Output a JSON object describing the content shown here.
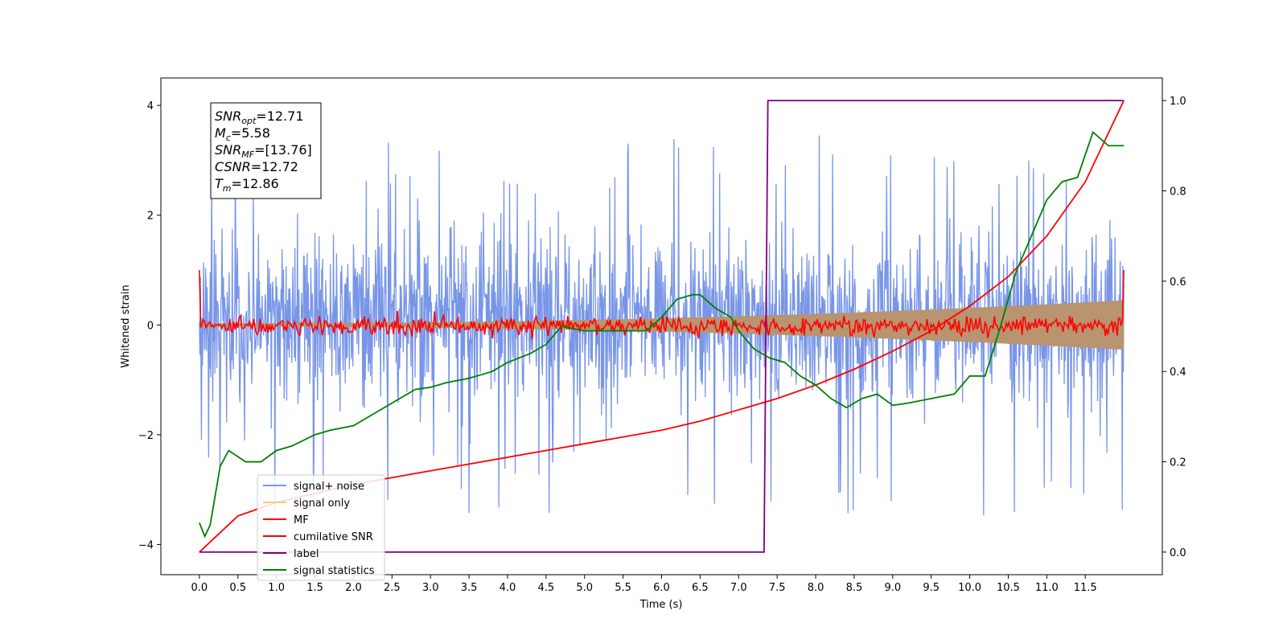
{
  "chart_data": {
    "type": "line",
    "title": "",
    "xlabel": "Time (s)",
    "ylabel": "Whitened strain",
    "y2label": "",
    "xlim": [
      -0.5,
      12.5
    ],
    "ylim": [
      -4.55,
      4.5
    ],
    "y2lim": [
      -0.05,
      1.05
    ],
    "x_ticks": [
      0.0,
      0.5,
      1.0,
      1.5,
      2.0,
      2.5,
      3.0,
      3.5,
      4.0,
      4.5,
      5.0,
      5.5,
      6.0,
      6.5,
      7.0,
      7.5,
      8.0,
      8.5,
      9.0,
      9.5,
      10.0,
      10.5,
      11.0,
      11.5
    ],
    "x_tick_labels": [
      "0.0",
      "0.5",
      "1.0",
      "1.5",
      "2.0",
      "2.5",
      "3.0",
      "3.5",
      "4.0",
      "4.5",
      "5.0",
      "5.5",
      "6.0",
      "6.5",
      "7.0",
      "7.5",
      "8.0",
      "8.5",
      "9.0",
      "9.5",
      "10.0",
      "10.5",
      "11.0",
      "11.5"
    ],
    "y_ticks": [
      -4,
      -2,
      0,
      2,
      4
    ],
    "y_tick_labels": [
      "−4",
      "−2",
      "0",
      "2",
      "4"
    ],
    "y2_ticks": [
      0.0,
      0.2,
      0.4,
      0.6,
      0.8,
      1.0
    ],
    "y2_tick_labels": [
      "0.0",
      "0.2",
      "0.4",
      "0.6",
      "0.8",
      "1.0"
    ],
    "grid": false,
    "legend_position": "lower-left",
    "annotation": {
      "lines": [
        {
          "base": "SNR",
          "sub": "opt",
          "value": "=12.71"
        },
        {
          "base": "M",
          "sub": "c",
          "value": "=5.58"
        },
        {
          "base": "SNR",
          "sub": "MF",
          "value": "=[13.76]"
        },
        {
          "base": "CSNR",
          "sub": "",
          "value": "=12.72"
        },
        {
          "base": "T",
          "sub": "m",
          "value": "=12.86"
        }
      ]
    },
    "series": [
      {
        "name": "signal+ noise",
        "axis": "left",
        "color": "#7895e8",
        "x_range": [
          0.0,
          12.0
        ],
        "y_min": -3.95,
        "y_max": 4.05,
        "typical_band": [
          -1.9,
          2.2
        ]
      },
      {
        "name": "signal only",
        "axis": "left",
        "color": "#ffc87a",
        "fill_color": "#b89470",
        "x_range": [
          0.0,
          12.0
        ],
        "envelope_start": 0.03,
        "envelope_end": 0.45
      },
      {
        "name": "MF",
        "axis": "left",
        "color": "#ff0000",
        "x_range": [
          0.0,
          12.0
        ],
        "baseline": 0.0,
        "start_value": 1.0,
        "end_value": 1.0,
        "noise_amplitude": 0.08
      },
      {
        "name": "cumilative SNR",
        "axis": "right",
        "color": "#ff0000",
        "x": [
          0.0,
          0.5,
          1.0,
          1.5,
          2.0,
          2.5,
          3.0,
          3.5,
          4.0,
          4.5,
          5.0,
          5.5,
          6.0,
          6.5,
          7.0,
          7.5,
          8.0,
          8.5,
          9.0,
          9.5,
          10.0,
          10.5,
          11.0,
          11.5,
          12.0
        ],
        "values": [
          0.0,
          0.08,
          0.11,
          0.13,
          0.15,
          0.165,
          0.18,
          0.195,
          0.21,
          0.225,
          0.24,
          0.255,
          0.27,
          0.29,
          0.315,
          0.34,
          0.37,
          0.405,
          0.445,
          0.49,
          0.545,
          0.61,
          0.7,
          0.82,
          1.0
        ]
      },
      {
        "name": "label",
        "axis": "right",
        "color": "#800080",
        "x": [
          0.0,
          7.33,
          7.38,
          12.0
        ],
        "values": [
          0.0,
          0.0,
          1.0,
          1.0
        ]
      },
      {
        "name": "signal statistics",
        "axis": "right",
        "color": "#008000",
        "x": [
          0.0,
          0.07,
          0.14,
          0.27,
          0.38,
          0.6,
          0.8,
          1.0,
          1.2,
          1.5,
          1.7,
          2.0,
          2.2,
          2.5,
          2.8,
          3.0,
          3.2,
          3.5,
          3.8,
          4.0,
          4.3,
          4.5,
          4.7,
          5.0,
          5.2,
          5.5,
          5.8,
          6.0,
          6.2,
          6.4,
          6.5,
          6.7,
          6.9,
          7.0,
          7.2,
          7.4,
          7.6,
          7.8,
          8.0,
          8.2,
          8.4,
          8.6,
          8.8,
          9.0,
          9.2,
          9.5,
          9.8,
          10.0,
          10.2,
          10.4,
          10.6,
          10.8,
          11.0,
          11.2,
          11.4,
          11.6,
          11.8,
          12.0
        ],
        "values": [
          0.065,
          0.035,
          0.06,
          0.19,
          0.225,
          0.2,
          0.2,
          0.225,
          0.235,
          0.26,
          0.27,
          0.28,
          0.3,
          0.33,
          0.36,
          0.365,
          0.375,
          0.385,
          0.4,
          0.42,
          0.44,
          0.46,
          0.5,
          0.49,
          0.49,
          0.49,
          0.49,
          0.52,
          0.56,
          0.57,
          0.57,
          0.54,
          0.52,
          0.49,
          0.45,
          0.43,
          0.42,
          0.39,
          0.37,
          0.34,
          0.32,
          0.34,
          0.35,
          0.325,
          0.33,
          0.34,
          0.35,
          0.39,
          0.39,
          0.5,
          0.62,
          0.7,
          0.78,
          0.82,
          0.83,
          0.93,
          0.9,
          0.9
        ]
      }
    ]
  }
}
